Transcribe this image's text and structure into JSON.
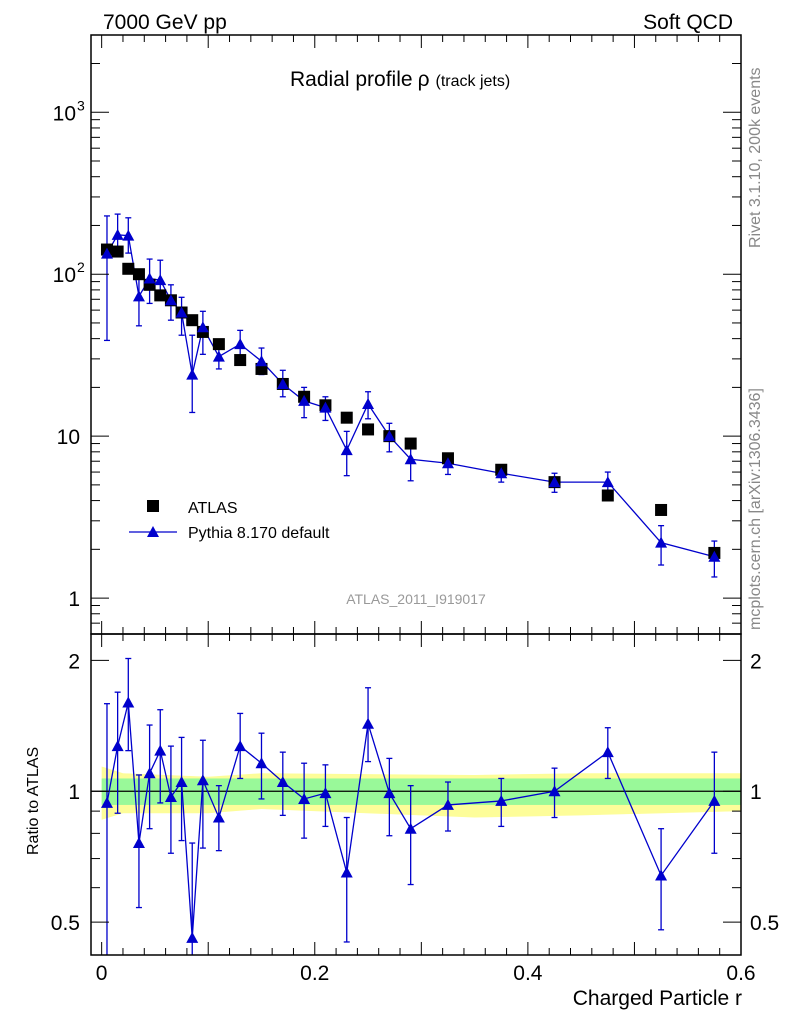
{
  "header": {
    "left": "7000 GeV pp",
    "right": "Soft QCD"
  },
  "side_labels": {
    "rivet": "Rivet 3.1.10,  200k events",
    "mcplots": "mcplots.cern.ch [arXiv:1306.3436]"
  },
  "analysis_id": "ATLAS_2011_I919017",
  "colors": {
    "data": "#000000",
    "mc": "#0000cc",
    "band_inner": "#99f999",
    "band_outer": "#fdfd99"
  },
  "chart_data": [
    {
      "type": "scatter",
      "title": "Radial profile ρ",
      "title_main": "Radial profile",
      "title_symbol": "ρ",
      "title_sub": "(track jets)",
      "xlabel": "Charged Particle r",
      "ylabel": "",
      "yscale": "log",
      "xlim": [
        -0.01,
        0.6
      ],
      "ylim": [
        0.6,
        3000
      ],
      "y_tick_labels": [
        {
          "value": 1,
          "label": "1"
        },
        {
          "value": 10,
          "label": "10"
        },
        {
          "value": 100,
          "label": "10",
          "exp": "2"
        },
        {
          "value": 1000,
          "label": "10",
          "exp": "3"
        }
      ],
      "legend_position": "middle-left",
      "series": [
        {
          "name": "ATLAS",
          "marker": "square",
          "x": [
            0.005,
            0.015,
            0.025,
            0.035,
            0.045,
            0.055,
            0.065,
            0.075,
            0.085,
            0.095,
            0.11,
            0.13,
            0.15,
            0.17,
            0.19,
            0.21,
            0.23,
            0.25,
            0.27,
            0.29,
            0.325,
            0.375,
            0.425,
            0.475,
            0.525,
            0.575
          ],
          "y": [
            142,
            138,
            108,
            100,
            86,
            74,
            69,
            58,
            52,
            44,
            37,
            29.5,
            26,
            21,
            17.5,
            15.5,
            13,
            11,
            10,
            9,
            7.3,
            6.2,
            5.2,
            4.3,
            3.5,
            1.9
          ]
        },
        {
          "name": "Pythia 8.170 default",
          "marker": "triangle",
          "x": [
            0.005,
            0.015,
            0.025,
            0.035,
            0.045,
            0.055,
            0.065,
            0.075,
            0.085,
            0.095,
            0.11,
            0.13,
            0.15,
            0.17,
            0.19,
            0.21,
            0.23,
            0.25,
            0.27,
            0.29,
            0.325,
            0.375,
            0.425,
            0.475,
            0.525,
            0.575
          ],
          "y": [
            134,
            175,
            173,
            73,
            94,
            92,
            69,
            58,
            24,
            47,
            31,
            37,
            29,
            21,
            16.5,
            15,
            8.2,
            15.8,
            10,
            7.2,
            6.8,
            5.9,
            5.2,
            5.2,
            2.2,
            1.8
          ],
          "yerr_low": [
            95,
            45,
            38,
            25,
            28,
            20,
            17,
            16,
            10,
            15,
            5,
            6,
            5,
            3.5,
            3.5,
            2.5,
            2.5,
            3,
            2,
            1.9,
            1,
            0.7,
            0.7,
            0.7,
            0.6,
            0.45
          ],
          "yerr_high": [
            95,
            60,
            50,
            30,
            30,
            30,
            17,
            14,
            18,
            12,
            6,
            8,
            6,
            4.5,
            3.5,
            2.5,
            2.5,
            3,
            2,
            1.9,
            1,
            0.7,
            0.7,
            0.8,
            0.6,
            0.45
          ]
        }
      ]
    },
    {
      "type": "scatter",
      "title": "",
      "xlabel": "Charged Particle r",
      "ylabel": "Ratio to ATLAS",
      "xlim": [
        -0.01,
        0.6
      ],
      "ylim": [
        0.42,
        2.3
      ],
      "yscale": "log",
      "x_tick_labels": [
        {
          "value": 0,
          "label": "0"
        },
        {
          "value": 0.2,
          "label": "0.2"
        },
        {
          "value": 0.4,
          "label": "0.4"
        },
        {
          "value": 0.6,
          "label": "0.6"
        }
      ],
      "y_tick_labels": [
        {
          "value": 0.5,
          "label": "0.5"
        },
        {
          "value": 1,
          "label": "1"
        },
        {
          "value": 2,
          "label": "2"
        }
      ],
      "bands": {
        "inner": [
          0.93,
          1.07
        ],
        "outer_x": [
          0.0,
          0.02,
          0.1,
          0.15,
          0.35,
          0.45,
          0.6
        ],
        "outer_low": [
          0.86,
          0.89,
          0.89,
          0.91,
          0.87,
          0.88,
          0.9
        ],
        "outer_high": [
          1.14,
          1.1,
          1.08,
          1.1,
          1.09,
          1.1,
          1.1
        ]
      },
      "series": [
        {
          "name": "Pythia 8.170 default / ATLAS",
          "x": [
            0.005,
            0.015,
            0.025,
            0.035,
            0.045,
            0.055,
            0.065,
            0.075,
            0.085,
            0.095,
            0.11,
            0.13,
            0.15,
            0.17,
            0.19,
            0.21,
            0.23,
            0.25,
            0.27,
            0.29,
            0.325,
            0.375,
            0.425,
            0.475,
            0.525,
            0.575
          ],
          "y": [
            0.94,
            1.27,
            1.6,
            0.76,
            1.1,
            1.24,
            0.97,
            1.05,
            0.46,
            1.06,
            0.87,
            1.27,
            1.16,
            1.05,
            0.96,
            0.99,
            0.65,
            1.43,
            0.99,
            0.82,
            0.93,
            0.95,
            1.0,
            1.23,
            0.64,
            0.95
          ],
          "yerr_low": [
            0.6,
            0.38,
            0.36,
            0.22,
            0.28,
            0.3,
            0.25,
            0.28,
            0.2,
            0.32,
            0.14,
            0.2,
            0.2,
            0.17,
            0.18,
            0.16,
            0.2,
            0.26,
            0.2,
            0.21,
            0.12,
            0.12,
            0.13,
            0.16,
            0.16,
            0.23
          ],
          "yerr_high": [
            0.65,
            0.42,
            0.42,
            0.33,
            0.32,
            0.3,
            0.3,
            0.28,
            0.3,
            0.25,
            0.16,
            0.24,
            0.2,
            0.18,
            0.2,
            0.16,
            0.22,
            0.3,
            0.2,
            0.21,
            0.12,
            0.12,
            0.13,
            0.17,
            0.18,
            0.28
          ]
        }
      ]
    }
  ]
}
